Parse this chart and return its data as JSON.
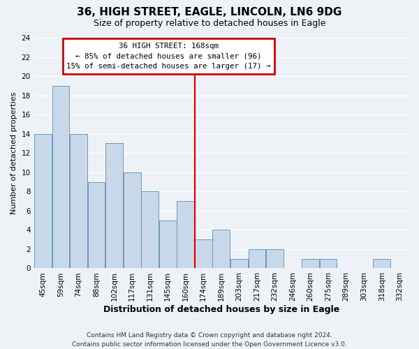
{
  "title": "36, HIGH STREET, EAGLE, LINCOLN, LN6 9DG",
  "subtitle": "Size of property relative to detached houses in Eagle",
  "xlabel": "Distribution of detached houses by size in Eagle",
  "ylabel": "Number of detached properties",
  "bar_color": "#c8d8eb",
  "bar_edge_color": "#6699bb",
  "bins": [
    "45sqm",
    "59sqm",
    "74sqm",
    "88sqm",
    "102sqm",
    "117sqm",
    "131sqm",
    "145sqm",
    "160sqm",
    "174sqm",
    "189sqm",
    "203sqm",
    "217sqm",
    "232sqm",
    "246sqm",
    "260sqm",
    "275sqm",
    "289sqm",
    "303sqm",
    "318sqm",
    "332sqm"
  ],
  "values": [
    14,
    19,
    14,
    9,
    13,
    10,
    8,
    5,
    7,
    3,
    4,
    1,
    2,
    2,
    0,
    1,
    1,
    0,
    0,
    1,
    0
  ],
  "ylim": [
    0,
    24
  ],
  "yticks": [
    0,
    2,
    4,
    6,
    8,
    10,
    12,
    14,
    16,
    18,
    20,
    22,
    24
  ],
  "vline_x": 8.5,
  "vline_color": "#cc0000",
  "annotation_title": "36 HIGH STREET: 168sqm",
  "annotation_line1": "← 85% of detached houses are smaller (96)",
  "annotation_line2": "15% of semi-detached houses are larger (17) →",
  "annotation_box_color": "#ffffff",
  "annotation_box_edge": "#cc0000",
  "footer1": "Contains HM Land Registry data © Crown copyright and database right 2024.",
  "footer2": "Contains public sector information licensed under the Open Government Licence v3.0.",
  "background_color": "#eef2f7",
  "grid_color": "#ffffff",
  "title_fontsize": 11,
  "subtitle_fontsize": 9,
  "xlabel_fontsize": 9,
  "ylabel_fontsize": 8,
  "tick_fontsize": 7.5,
  "footer_fontsize": 6.5
}
